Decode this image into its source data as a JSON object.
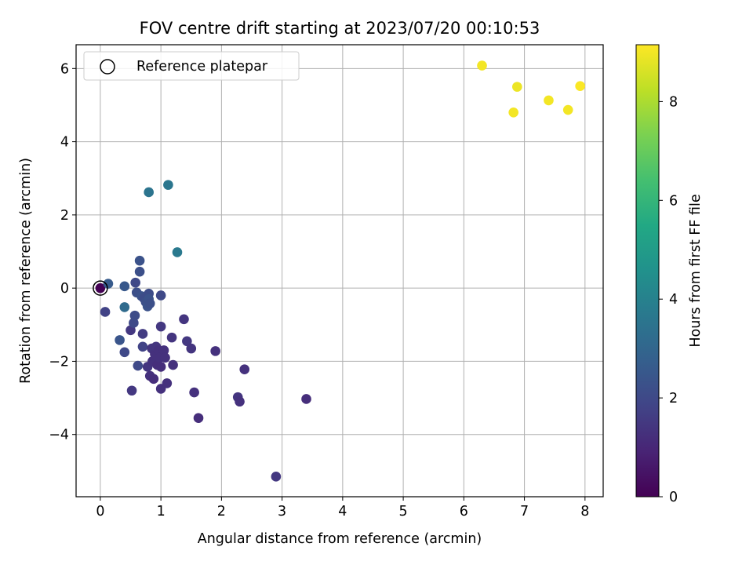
{
  "chart_data": {
    "type": "scatter",
    "title": "FOV centre drift starting at 2023/07/20 00:10:53",
    "xlabel": "Angular distance from reference (arcmin)",
    "ylabel": "Rotation from reference (arcmin)",
    "xlim": [
      -0.4,
      8.3
    ],
    "ylim": [
      -5.7,
      6.65
    ],
    "xticks": [
      0,
      1,
      2,
      3,
      4,
      5,
      6,
      7,
      8
    ],
    "yticks": [
      -4,
      -2,
      0,
      2,
      4,
      6
    ],
    "ytick_labels": [
      "−4",
      "−2",
      "0",
      "2",
      "4",
      "6"
    ],
    "grid": true,
    "legend": {
      "placement": "top-left",
      "entries": [
        {
          "label": "Reference platepar",
          "marker": "hollow-circle",
          "x": 0,
          "y": 0
        }
      ]
    },
    "colorbar": {
      "label": "Hours from first FF file",
      "colormap": "viridis",
      "range": [
        0,
        9.15
      ],
      "ticks": [
        0,
        2,
        4,
        6,
        8
      ]
    },
    "points": [
      {
        "x": 0.0,
        "y": 0.0,
        "h": 0.0
      },
      {
        "x": 0.13,
        "y": 0.12,
        "h": 2.6
      },
      {
        "x": 0.08,
        "y": -0.65,
        "h": 1.8
      },
      {
        "x": 0.32,
        "y": -1.42,
        "h": 2.4
      },
      {
        "x": 0.4,
        "y": 0.05,
        "h": 2.5
      },
      {
        "x": 0.4,
        "y": -0.52,
        "h": 3.2
      },
      {
        "x": 0.4,
        "y": -1.75,
        "h": 2.0
      },
      {
        "x": 0.5,
        "y": -1.15,
        "h": 1.5
      },
      {
        "x": 0.52,
        "y": -2.8,
        "h": 1.5
      },
      {
        "x": 0.55,
        "y": -0.95,
        "h": 2.0
      },
      {
        "x": 0.57,
        "y": -0.75,
        "h": 2.1
      },
      {
        "x": 0.58,
        "y": 0.15,
        "h": 2.0
      },
      {
        "x": 0.6,
        "y": -0.12,
        "h": 2.2
      },
      {
        "x": 0.62,
        "y": -2.12,
        "h": 2.0
      },
      {
        "x": 0.65,
        "y": 0.75,
        "h": 2.3
      },
      {
        "x": 0.65,
        "y": 0.45,
        "h": 2.2
      },
      {
        "x": 0.68,
        "y": -0.22,
        "h": 2.3
      },
      {
        "x": 0.7,
        "y": -1.6,
        "h": 1.8
      },
      {
        "x": 0.7,
        "y": -1.25,
        "h": 1.6
      },
      {
        "x": 0.72,
        "y": -0.28,
        "h": 2.1
      },
      {
        "x": 0.75,
        "y": -0.38,
        "h": 2.2
      },
      {
        "x": 0.78,
        "y": -0.5,
        "h": 2.3
      },
      {
        "x": 0.78,
        "y": -2.15,
        "h": 1.4
      },
      {
        "x": 0.8,
        "y": -0.15,
        "h": 2.1
      },
      {
        "x": 0.8,
        "y": -0.3,
        "h": 2.3
      },
      {
        "x": 0.82,
        "y": -0.42,
        "h": 2.2
      },
      {
        "x": 0.82,
        "y": -2.4,
        "h": 1.3
      },
      {
        "x": 0.85,
        "y": -1.65,
        "h": 1.4
      },
      {
        "x": 0.86,
        "y": -2.0,
        "h": 1.3
      },
      {
        "x": 0.88,
        "y": -2.48,
        "h": 1.2
      },
      {
        "x": 0.9,
        "y": -1.8,
        "h": 1.3
      },
      {
        "x": 0.92,
        "y": -1.6,
        "h": 1.4
      },
      {
        "x": 0.94,
        "y": -2.1,
        "h": 1.2
      },
      {
        "x": 0.96,
        "y": -1.7,
        "h": 1.3
      },
      {
        "x": 0.98,
        "y": -1.9,
        "h": 1.3
      },
      {
        "x": 1.0,
        "y": -2.15,
        "h": 1.2
      },
      {
        "x": 1.0,
        "y": -2.75,
        "h": 1.3
      },
      {
        "x": 1.0,
        "y": -1.05,
        "h": 1.5
      },
      {
        "x": 1.0,
        "y": -0.2,
        "h": 2.0
      },
      {
        "x": 1.05,
        "y": -1.7,
        "h": 1.3
      },
      {
        "x": 1.07,
        "y": -1.9,
        "h": 1.3
      },
      {
        "x": 1.1,
        "y": -2.6,
        "h": 1.3
      },
      {
        "x": 1.18,
        "y": -1.35,
        "h": 1.4
      },
      {
        "x": 1.2,
        "y": -2.1,
        "h": 1.3
      },
      {
        "x": 1.38,
        "y": -0.85,
        "h": 1.4
      },
      {
        "x": 1.43,
        "y": -1.45,
        "h": 1.5
      },
      {
        "x": 1.5,
        "y": -1.65,
        "h": 1.4
      },
      {
        "x": 1.55,
        "y": -2.85,
        "h": 1.3
      },
      {
        "x": 1.62,
        "y": -3.55,
        "h": 1.2
      },
      {
        "x": 1.9,
        "y": -1.72,
        "h": 1.3
      },
      {
        "x": 2.27,
        "y": -2.98,
        "h": 1.4
      },
      {
        "x": 2.3,
        "y": -3.1,
        "h": 1.3
      },
      {
        "x": 2.38,
        "y": -2.22,
        "h": 1.3
      },
      {
        "x": 2.9,
        "y": -5.15,
        "h": 1.5
      },
      {
        "x": 3.4,
        "y": -3.03,
        "h": 1.2
      },
      {
        "x": 0.8,
        "y": 2.62,
        "h": 3.5
      },
      {
        "x": 1.12,
        "y": 2.82,
        "h": 3.6
      },
      {
        "x": 1.27,
        "y": 0.98,
        "h": 3.7
      },
      {
        "x": 6.3,
        "y": 6.08,
        "h": 9.0
      },
      {
        "x": 6.82,
        "y": 4.8,
        "h": 9.0
      },
      {
        "x": 6.88,
        "y": 5.5,
        "h": 8.9
      },
      {
        "x": 7.4,
        "y": 5.13,
        "h": 9.0
      },
      {
        "x": 7.72,
        "y": 4.87,
        "h": 9.0
      },
      {
        "x": 7.92,
        "y": 5.52,
        "h": 9.1
      }
    ]
  }
}
